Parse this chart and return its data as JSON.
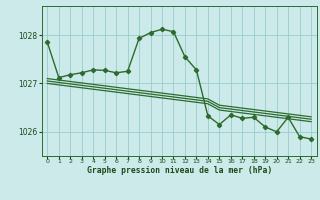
{
  "title": "Graphe pression niveau de la mer (hPa)",
  "background_color": "#cceaea",
  "grid_color": "#99cccc",
  "line_color": "#2d6b2d",
  "text_color": "#1a4a1a",
  "ylim": [
    1025.5,
    1028.6
  ],
  "yticks": [
    1026,
    1027,
    1028
  ],
  "xlim": [
    -0.5,
    23.5
  ],
  "xticks": [
    0,
    1,
    2,
    3,
    4,
    5,
    6,
    7,
    8,
    9,
    10,
    11,
    12,
    13,
    14,
    15,
    16,
    17,
    18,
    19,
    20,
    21,
    22,
    23
  ],
  "trend1_y": [
    1027.1,
    1027.07,
    1027.04,
    1027.01,
    1026.98,
    1026.95,
    1026.92,
    1026.89,
    1026.86,
    1026.83,
    1026.8,
    1026.77,
    1026.74,
    1026.71,
    1026.68,
    1026.55,
    1026.52,
    1026.49,
    1026.46,
    1026.43,
    1026.4,
    1026.37,
    1026.34,
    1026.31
  ],
  "trend2_y": [
    1027.05,
    1027.02,
    1026.99,
    1026.96,
    1026.93,
    1026.9,
    1026.87,
    1026.84,
    1026.81,
    1026.78,
    1026.75,
    1026.72,
    1026.69,
    1026.66,
    1026.63,
    1026.5,
    1026.47,
    1026.44,
    1026.41,
    1026.38,
    1026.35,
    1026.32,
    1026.29,
    1026.26
  ],
  "trend3_y": [
    1027.0,
    1026.97,
    1026.94,
    1026.91,
    1026.88,
    1026.85,
    1026.82,
    1026.79,
    1026.76,
    1026.73,
    1026.7,
    1026.67,
    1026.64,
    1026.61,
    1026.58,
    1026.45,
    1026.42,
    1026.39,
    1026.36,
    1026.33,
    1026.3,
    1026.27,
    1026.24,
    1026.21
  ],
  "main_y": [
    1027.85,
    1027.12,
    1027.18,
    1027.22,
    1027.28,
    1027.27,
    1027.22,
    1027.25,
    1027.93,
    1028.05,
    1028.12,
    1028.07,
    1027.55,
    1027.28,
    1026.33,
    1026.15,
    1026.35,
    1026.28,
    1026.3,
    1026.1,
    1026.0,
    1026.3,
    1025.9,
    1025.85
  ]
}
